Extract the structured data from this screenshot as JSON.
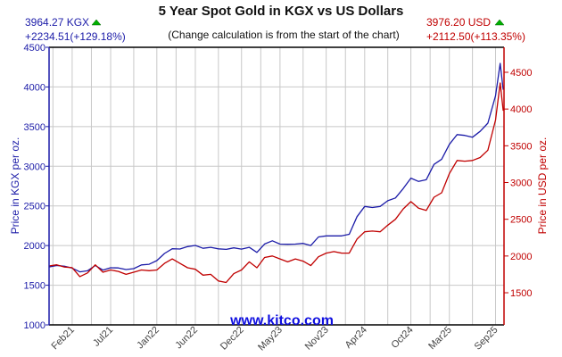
{
  "chart_data": {
    "type": "line",
    "title": "5 Year Spot Gold in KGX vs US Dollars",
    "subtitle": "(Change calculation is from the start of the chart)",
    "watermark": "www.kitco.com",
    "xlabel": "",
    "x_unit": "months since Nov 2020",
    "xlim": [
      0,
      59.1
    ],
    "x_tick_labels": [
      "Feb21",
      "Jul21",
      "Jan22",
      "Jun22",
      "Dec22",
      "May23",
      "Nov23",
      "Apr24",
      "Oct24",
      "Mar25",
      "Sep25"
    ],
    "x_tick_positions": [
      3,
      8,
      14,
      19,
      25,
      30,
      36,
      41,
      47,
      52,
      58
    ],
    "grid": true,
    "left_axis": {
      "label": "Price in KGX per oz.",
      "ylim": [
        1000,
        4500
      ],
      "ticks": [
        1000,
        1500,
        2000,
        2500,
        3000,
        3500,
        4000,
        4500
      ],
      "color": "#1c1ca8"
    },
    "right_axis": {
      "label": "Price in USD per oz.",
      "ylim": [
        1063,
        4840
      ],
      "ticks": [
        1500,
        2000,
        2500,
        3000,
        3500,
        4000,
        4500
      ],
      "color": "#c00000"
    },
    "x": [
      0,
      1,
      2,
      3,
      4,
      5,
      6,
      7,
      8,
      9,
      10,
      11,
      12,
      13,
      14,
      15,
      16,
      17,
      18,
      19,
      20,
      21,
      22,
      23,
      24,
      25,
      26,
      27,
      28,
      29,
      30,
      31,
      32,
      33,
      34,
      35,
      36,
      37,
      38,
      39,
      40,
      41,
      42,
      43,
      44,
      45,
      46,
      47,
      48,
      49,
      50,
      51,
      52,
      53,
      54,
      55,
      56,
      57,
      58,
      58.6,
      59.0
    ],
    "series": [
      {
        "name": "KGX",
        "axis": "left",
        "color": "#1c1ca8",
        "values": [
          1730,
          1748,
          1739,
          1716,
          1668,
          1682,
          1748,
          1691,
          1720,
          1718,
          1698,
          1709,
          1756,
          1764,
          1810,
          1900,
          1960,
          1957,
          1987,
          2002,
          1966,
          1978,
          1959,
          1952,
          1971,
          1955,
          1978,
          1914,
          2020,
          2060,
          2019,
          2016,
          2019,
          2027,
          2001,
          2109,
          2122,
          2122,
          2122,
          2142,
          2364,
          2493,
          2480,
          2493,
          2565,
          2600,
          2719,
          2850,
          2809,
          2830,
          3024,
          3089,
          3276,
          3399,
          3389,
          3366,
          3440,
          3543,
          3889,
          4297,
          3964
        ]
      },
      {
        "name": "USD",
        "axis": "right",
        "color": "#c00000",
        "values": [
          1864,
          1880,
          1850,
          1842,
          1720,
          1770,
          1880,
          1780,
          1810,
          1790,
          1750,
          1780,
          1810,
          1800,
          1810,
          1900,
          1960,
          1900,
          1840,
          1820,
          1740,
          1750,
          1660,
          1640,
          1760,
          1810,
          1920,
          1840,
          1980,
          2000,
          1960,
          1920,
          1960,
          1930,
          1870,
          1990,
          2040,
          2060,
          2040,
          2040,
          2230,
          2330,
          2340,
          2330,
          2420,
          2500,
          2640,
          2740,
          2650,
          2620,
          2800,
          2860,
          3120,
          3300,
          3290,
          3300,
          3340,
          3440,
          3850,
          4354,
          3976
        ]
      }
    ],
    "readouts": {
      "kgx_price": "3964.27 KGX",
      "kgx_change": "+2234.51(+129.18%)",
      "usd_price": "3976.20 USD",
      "usd_change": "+2112.50(+113.35%)",
      "up_color": "#00b000"
    }
  }
}
